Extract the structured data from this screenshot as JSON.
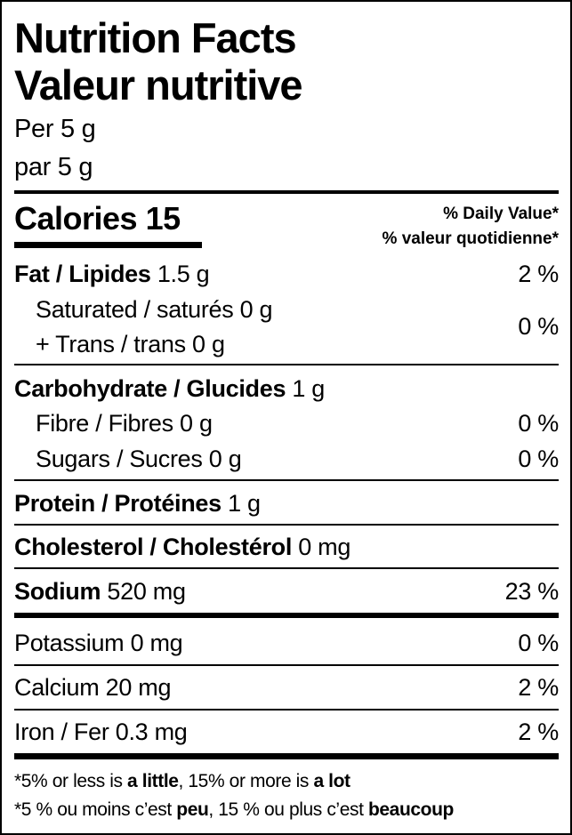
{
  "header": {
    "title_en": "Nutrition Facts",
    "title_fr": "Valeur nutritive",
    "serving_en": "Per 5 g",
    "serving_fr": "par 5 g"
  },
  "calories": {
    "label": "Calories",
    "value": "15"
  },
  "daily_value_header": {
    "en": "% Daily Value*",
    "fr": "% valeur quotidienne*"
  },
  "nutrients": {
    "fat": {
      "label": "Fat / Lipides",
      "amount": "1.5 g",
      "dv": "2 %"
    },
    "saturated": {
      "label": "Saturated / saturés",
      "amount": "0 g"
    },
    "trans": {
      "label": "+ Trans / trans",
      "amount": "0 g"
    },
    "sat_trans_dv": "0 %",
    "carbohydrate": {
      "label": "Carbohydrate / Glucides",
      "amount": "1 g"
    },
    "fibre": {
      "label": "Fibre / Fibres",
      "amount": "0 g",
      "dv": "0 %"
    },
    "sugars": {
      "label": "Sugars / Sucres",
      "amount": "0 g",
      "dv": "0 %"
    },
    "protein": {
      "label": "Protein / Protéines",
      "amount": "1 g"
    },
    "cholesterol": {
      "label": "Cholesterol / Cholestérol",
      "amount": "0 mg"
    },
    "sodium": {
      "label": "Sodium",
      "amount": "520 mg",
      "dv": "23 %"
    },
    "potassium": {
      "label": "Potassium",
      "amount": "0 mg",
      "dv": "0 %"
    },
    "calcium": {
      "label": "Calcium",
      "amount": "20 mg",
      "dv": "2 %"
    },
    "iron": {
      "label": "Iron / Fer",
      "amount": "0.3 mg",
      "dv": "2 %"
    }
  },
  "footnote": {
    "en": {
      "p1": "*5% or less is ",
      "b1": "a little",
      "p2": ", 15% or more is ",
      "b2": "a lot"
    },
    "fr": {
      "p1": "*5 % ou moins c’est ",
      "b1": "peu",
      "p2": ", 15 % ou plus c’est ",
      "b2": "beaucoup"
    }
  }
}
